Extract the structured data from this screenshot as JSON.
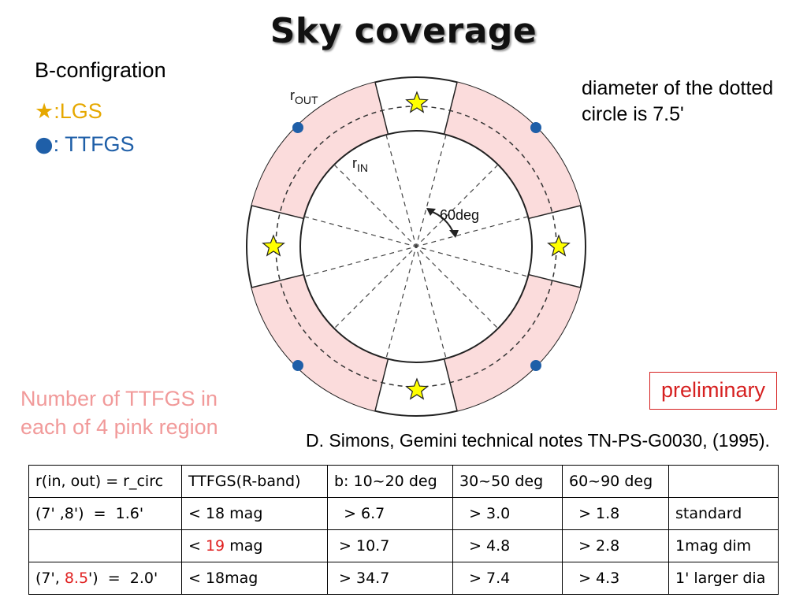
{
  "title": "Sky coverage",
  "config_label": "B-configration",
  "legend": {
    "lgs_symbol": "★",
    "lgs_label": ":LGS",
    "ttfgs_symbol": "●",
    "ttfgs_label": ": TTFGS"
  },
  "diagram": {
    "label_rout_main": "r",
    "label_rout_sub": "OUT",
    "label_rin_main": "r",
    "label_rin_sub": "IN",
    "angle_label": "60deg"
  },
  "note": "diameter of the dotted circle is 7.5'",
  "preliminary": "preliminary",
  "pink_note": "Number of TTFGS in each of 4 pink region",
  "reference": "D. Simons, Gemini technical notes TN-PS-G0030, (1995).",
  "table": {
    "header": [
      "r(in, out) = r_circ",
      "TTFGS(R-band)",
      "b: 10~20 deg",
      "30~50 deg",
      "60~90 deg",
      ""
    ],
    "row1": [
      "(7' ,8')  =  1.6'",
      "< 18 mag",
      "  > 6.7",
      "  > 3.0",
      "  > 1.8",
      "standard"
    ],
    "row2": {
      "c1": "",
      "c2_pre": "< ",
      "c2_red": "19",
      "c2_post": " mag",
      "c3": " > 10.7",
      "c4": "  > 4.8",
      "c5": "  > 2.8",
      "c6": "1mag dim"
    },
    "row3": {
      "c1_pre": "(7', ",
      "c1_red": "8.5",
      "c1_post": "')  =  2.0'",
      "c2": "< 18mag",
      "c3": " > 34.7",
      "c4": "  > 7.4",
      "c5": "  > 4.3",
      "c6": "1' larger dia"
    }
  },
  "colors": {
    "pink_region": "#fbdcdc",
    "star": "#ffff00",
    "ttfgs_dot": "#1f5fa8",
    "highlight": "#e02020"
  }
}
